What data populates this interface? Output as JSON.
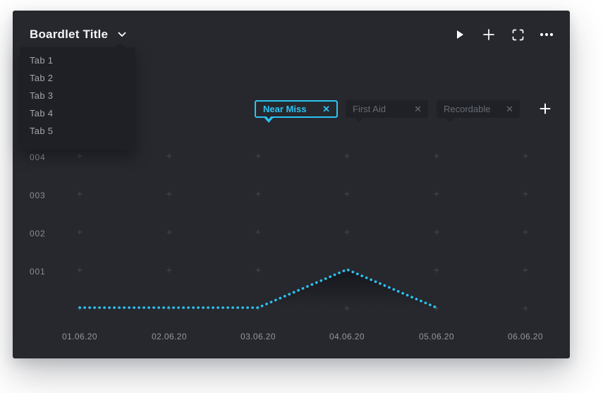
{
  "boardlet": {
    "title": "Boardlet Title",
    "title_chevron_icon": "chevron-down"
  },
  "header_actions": [
    {
      "name": "run",
      "icon": "play-icon"
    },
    {
      "name": "add",
      "icon": "plus-icon"
    },
    {
      "name": "fullscreen",
      "icon": "fullscreen-icon"
    },
    {
      "name": "more",
      "icon": "ellipsis-icon"
    }
  ],
  "tabs_dropdown": {
    "items": [
      "Tab 1",
      "Tab 2",
      "Tab 3",
      "Tab 4",
      "Tab 5"
    ]
  },
  "filters": {
    "chips": [
      {
        "label": "Near Miss",
        "active": true,
        "close_icon": "x-icon"
      },
      {
        "label": "First Aid",
        "active": false,
        "close_icon": "x-icon"
      },
      {
        "label": "Recordable",
        "active": false,
        "close_icon": "x-icon"
      }
    ],
    "add_icon": "plus-icon"
  },
  "chart_data": {
    "type": "line",
    "line_style": "dotted",
    "x": [
      "01.06.20",
      "02.06.20",
      "03.06.20",
      "04.06.20",
      "05.06.20",
      "06.06.20"
    ],
    "y_ticks": [
      "001",
      "002",
      "003",
      "004"
    ],
    "ylim": [
      0,
      4
    ],
    "series": [
      {
        "name": "Near Miss",
        "values": [
          0,
          0,
          0,
          1,
          0,
          null
        ]
      }
    ],
    "grid": "plus-marks",
    "legend": "none",
    "colors": {
      "line": "#2cc3f2",
      "grid_mark": "#45474d",
      "area_shadow": "#0f1115"
    }
  }
}
